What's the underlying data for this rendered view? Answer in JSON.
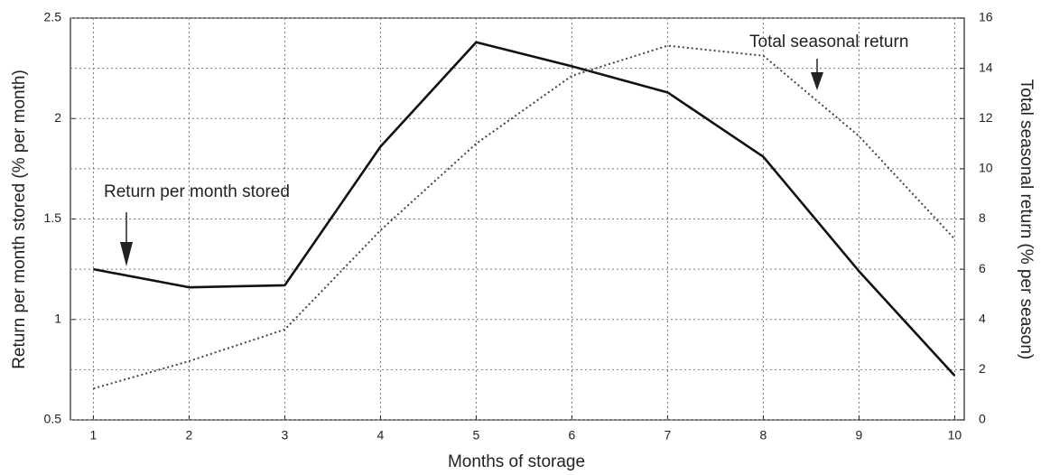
{
  "chart_data": {
    "type": "line",
    "x_label": "Months of storage",
    "y_label": "Return per month stored (% per month)",
    "y2_label": "Total seasonal return (% per season)",
    "annotations": [
      "Return per month stored",
      "Total seasonal return"
    ],
    "x": [
      1,
      2,
      3,
      4,
      5,
      6,
      7,
      8,
      9,
      10
    ],
    "xlim": [
      0.76,
      10.1
    ],
    "xticks": [
      1,
      2,
      3,
      4,
      5,
      6,
      7,
      8,
      9,
      10
    ],
    "ylim": [
      0.5,
      2.5
    ],
    "yticks": [
      0.5,
      1,
      1.5,
      2,
      2.5
    ],
    "y2lim": [
      0,
      16
    ],
    "y2ticks": [
      0,
      2,
      4,
      6,
      8,
      10,
      12,
      14,
      16
    ],
    "grid": true,
    "series": [
      {
        "color": "#111111",
        "style": "solid",
        "values": [
          1.25,
          1.16,
          1.17,
          1.86,
          2.38,
          2.26,
          2.13,
          1.81,
          1.24,
          0.72
        ]
      },
      {
        "color": "#444444",
        "style": "dotted",
        "axis": "y2",
        "values": [
          1.25,
          2.34,
          3.6,
          7.55,
          11.0,
          13.7,
          14.9,
          14.5,
          11.3,
          7.2
        ]
      }
    ]
  }
}
